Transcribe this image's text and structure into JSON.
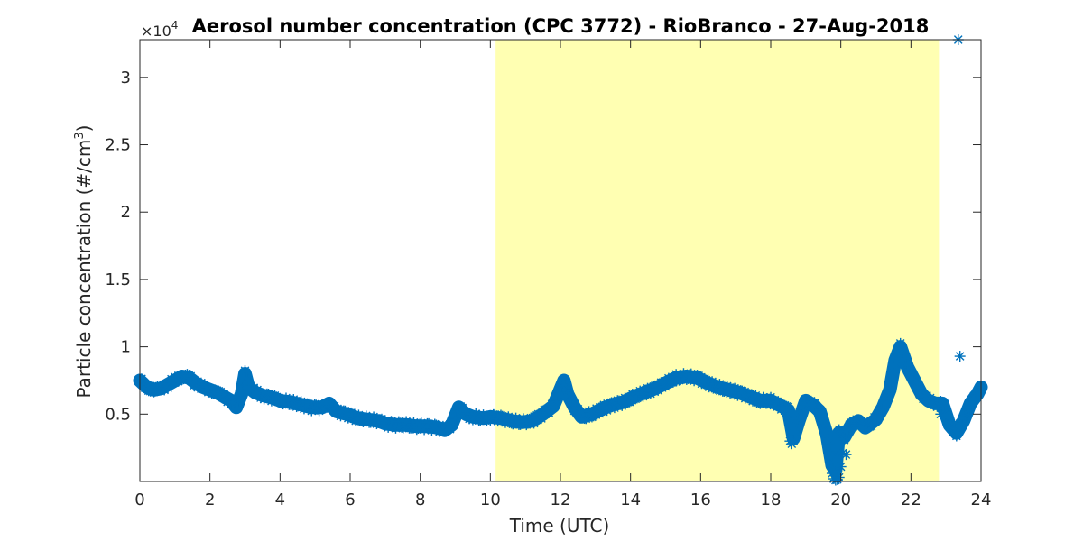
{
  "chart_data": {
    "type": "scatter",
    "title": "Aerosol number concentration (CPC 3772) - RioBranco - 27-Aug-2018",
    "xlabel": "Time (UTC)",
    "ylabel_main": "Particle concentration (#/cm",
    "ylabel_sup": "3",
    "ylabel_close": ")",
    "y_multiplier_label": "×10",
    "y_multiplier_exp": "4",
    "xlim": [
      0,
      24
    ],
    "ylim": [
      0,
      32800
    ],
    "x_ticks": [
      0,
      2,
      4,
      6,
      8,
      10,
      12,
      14,
      16,
      18,
      20,
      22,
      24
    ],
    "x_tick_labels": [
      "0",
      "2",
      "4",
      "6",
      "8",
      "10",
      "12",
      "14",
      "16",
      "18",
      "20",
      "22",
      "24"
    ],
    "y_ticks": [
      5000,
      10000,
      15000,
      20000,
      25000,
      30000
    ],
    "y_tick_labels": [
      "0.5",
      "1",
      "1.5",
      "2",
      "2.5",
      "3"
    ],
    "daylight_span": [
      10.15,
      22.8
    ],
    "colors": {
      "series": "#0072bd",
      "daylight": "#ffffb2",
      "axis": "#262626"
    },
    "marker": "asterisk",
    "series": [
      {
        "x": [
          0.0,
          0.2,
          0.4,
          0.6,
          0.8,
          1.0,
          1.2,
          1.4,
          1.6,
          1.8,
          2.0,
          2.2,
          2.4,
          2.6,
          2.75,
          2.9,
          3.0,
          3.1,
          3.3,
          3.5,
          3.8,
          4.0,
          4.3,
          4.6,
          4.9,
          5.2,
          5.4,
          5.6,
          5.9,
          6.2,
          6.5,
          6.8,
          7.0,
          7.3,
          7.6,
          7.9,
          8.2,
          8.5,
          8.7,
          8.9,
          9.1,
          9.3,
          9.5,
          9.8,
          10.0,
          10.3,
          10.6,
          10.9,
          11.2,
          11.5,
          11.8,
          12.1,
          12.2,
          12.4,
          12.6,
          12.9,
          13.2,
          13.5,
          13.8,
          14.1,
          14.4,
          14.7,
          15.0,
          15.3,
          15.6,
          15.9,
          16.2,
          16.5,
          16.8,
          17.1,
          17.4,
          17.7,
          18.0,
          18.3,
          18.5,
          18.65,
          18.8,
          19.0,
          19.2,
          19.4,
          19.6,
          19.75,
          19.85,
          19.95,
          20.1,
          20.3,
          20.5,
          20.7,
          21.0,
          21.2,
          21.4,
          21.55,
          21.7,
          21.9,
          22.1,
          22.3,
          22.5,
          22.7,
          22.9,
          23.1,
          23.3,
          23.5,
          23.7,
          23.9,
          24.0
        ],
        "y": [
          7500,
          7000,
          6800,
          6900,
          7200,
          7500,
          7800,
          7700,
          7300,
          7000,
          6800,
          6600,
          6300,
          6000,
          5500,
          6500,
          8000,
          7000,
          6600,
          6400,
          6200,
          6000,
          5900,
          5700,
          5500,
          5500,
          5800,
          5200,
          5000,
          4700,
          4600,
          4500,
          4300,
          4200,
          4200,
          4100,
          4100,
          4000,
          3800,
          4200,
          5500,
          5000,
          4800,
          4700,
          4800,
          4700,
          4500,
          4400,
          4500,
          5000,
          5600,
          7500,
          6500,
          5500,
          4800,
          5000,
          5400,
          5700,
          5900,
          6300,
          6600,
          6900,
          7300,
          7700,
          7800,
          7700,
          7300,
          7000,
          6800,
          6600,
          6300,
          6000,
          6000,
          5600,
          5300,
          3200,
          4500,
          6000,
          5700,
          5200,
          3500,
          1200,
          800,
          3600,
          3300,
          4200,
          4500,
          4000,
          4600,
          5500,
          6800,
          9000,
          10000,
          8500,
          7500,
          6500,
          6000,
          5800,
          5800,
          4200,
          3600,
          4500,
          5800,
          6500,
          7000
        ]
      }
    ],
    "outliers": {
      "x": [
        18.55,
        18.6,
        18.7,
        19.75,
        19.8,
        19.85,
        19.9,
        19.95,
        20.0,
        20.05,
        20.15,
        23.35,
        23.4,
        23.1,
        22.85
      ],
      "y": [
        3000,
        2800,
        3500,
        600,
        200,
        100,
        150,
        300,
        1100,
        2100,
        2000,
        32800,
        9300,
        4300,
        5000
      ]
    }
  }
}
